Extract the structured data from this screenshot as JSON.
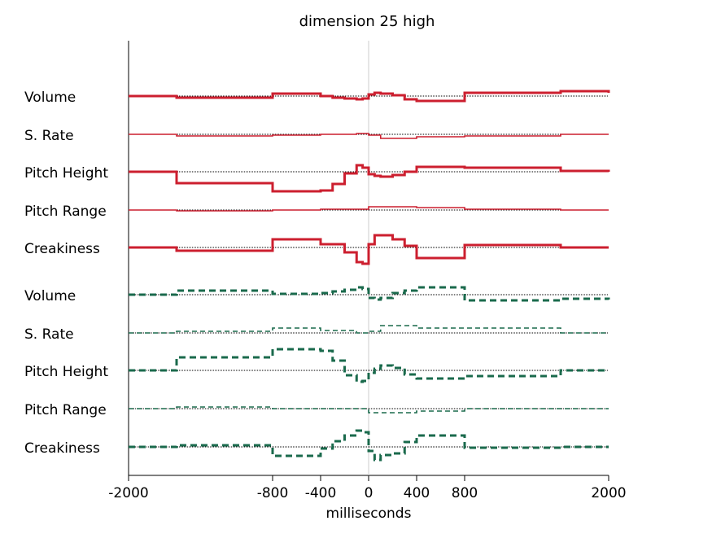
{
  "chart_data": {
    "type": "line",
    "title": "dimension 25 high",
    "xlabel": "milliseconds",
    "ylabel": "",
    "xlim": [
      -2000,
      2000
    ],
    "x_ticks": [
      -2000,
      -800,
      -400,
      0,
      400,
      800,
      2000
    ],
    "x_tick_labels": [
      "-2000",
      "-800",
      "-400",
      "0",
      "400",
      "800",
      "2000"
    ],
    "zero_line": true,
    "grid": false,
    "groups": [
      {
        "style": "solid",
        "color": "#cc1f2f",
        "series": [
          {
            "name": "Volume",
            "weight": "thick",
            "points": [
              [
                -2000,
                0
              ],
              [
                -1600,
                -2
              ],
              [
                -800,
                3
              ],
              [
                -400,
                0
              ],
              [
                -300,
                -2
              ],
              [
                -200,
                -3
              ],
              [
                -100,
                -4
              ],
              [
                -50,
                -3
              ],
              [
                0,
                2
              ],
              [
                50,
                4
              ],
              [
                100,
                3
              ],
              [
                200,
                1
              ],
              [
                300,
                -4
              ],
              [
                400,
                -6
              ],
              [
                800,
                4
              ],
              [
                1600,
                6
              ],
              [
                2000,
                4
              ]
            ]
          },
          {
            "name": "S. Rate",
            "weight": "thin",
            "points": [
              [
                -2000,
                0
              ],
              [
                -1600,
                -2
              ],
              [
                -800,
                -1
              ],
              [
                -400,
                0
              ],
              [
                -100,
                1
              ],
              [
                0,
                -1
              ],
              [
                100,
                -5
              ],
              [
                400,
                -3
              ],
              [
                800,
                -2
              ],
              [
                1600,
                0
              ],
              [
                2000,
                0
              ]
            ]
          },
          {
            "name": "Pitch Height",
            "weight": "thick",
            "points": [
              [
                -2000,
                0
              ],
              [
                -1600,
                -14
              ],
              [
                -800,
                -24
              ],
              [
                -400,
                -23
              ],
              [
                -300,
                -15
              ],
              [
                -200,
                -2
              ],
              [
                -100,
                8
              ],
              [
                -50,
                5
              ],
              [
                0,
                -3
              ],
              [
                50,
                -5
              ],
              [
                100,
                -6
              ],
              [
                200,
                -4
              ],
              [
                300,
                0
              ],
              [
                400,
                6
              ],
              [
                800,
                5
              ],
              [
                1600,
                1
              ],
              [
                2000,
                0
              ]
            ]
          },
          {
            "name": "Pitch Range",
            "weight": "thin",
            "points": [
              [
                -2000,
                0
              ],
              [
                -1600,
                -1
              ],
              [
                -800,
                0
              ],
              [
                -400,
                1
              ],
              [
                0,
                4
              ],
              [
                400,
                3
              ],
              [
                800,
                1
              ],
              [
                1600,
                0
              ],
              [
                2000,
                0
              ]
            ]
          },
          {
            "name": "Creakiness",
            "weight": "thick",
            "points": [
              [
                -2000,
                0
              ],
              [
                -1600,
                -4
              ],
              [
                -800,
                10
              ],
              [
                -400,
                4
              ],
              [
                -200,
                -6
              ],
              [
                -100,
                -18
              ],
              [
                -50,
                -20
              ],
              [
                0,
                4
              ],
              [
                50,
                15
              ],
              [
                200,
                10
              ],
              [
                300,
                2
              ],
              [
                400,
                -13
              ],
              [
                800,
                3
              ],
              [
                1600,
                0
              ],
              [
                2000,
                0
              ]
            ]
          }
        ]
      },
      {
        "style": "dashed",
        "color": "#1a6a4c",
        "series": [
          {
            "name": "Volume",
            "weight": "thick",
            "points": [
              [
                -2000,
                0
              ],
              [
                -1600,
                5
              ],
              [
                -800,
                1
              ],
              [
                -400,
                2
              ],
              [
                -300,
                4
              ],
              [
                -200,
                6
              ],
              [
                -100,
                9
              ],
              [
                -50,
                7
              ],
              [
                0,
                -4
              ],
              [
                50,
                -6
              ],
              [
                100,
                -4
              ],
              [
                200,
                2
              ],
              [
                300,
                5
              ],
              [
                400,
                9
              ],
              [
                800,
                -7
              ],
              [
                1600,
                -5
              ],
              [
                2000,
                -6
              ]
            ]
          },
          {
            "name": "S. Rate",
            "weight": "thin",
            "points": [
              [
                -2000,
                0
              ],
              [
                -1600,
                2
              ],
              [
                -800,
                6
              ],
              [
                -400,
                3
              ],
              [
                -100,
                0
              ],
              [
                0,
                2
              ],
              [
                100,
                9
              ],
              [
                400,
                6
              ],
              [
                800,
                6
              ],
              [
                1600,
                0
              ],
              [
                2000,
                0
              ]
            ]
          },
          {
            "name": "Pitch Height",
            "weight": "thick",
            "points": [
              [
                -2000,
                0
              ],
              [
                -1600,
                16
              ],
              [
                -800,
                26
              ],
              [
                -400,
                24
              ],
              [
                -300,
                12
              ],
              [
                -200,
                -6
              ],
              [
                -100,
                -14
              ],
              [
                -50,
                -13
              ],
              [
                0,
                -3
              ],
              [
                50,
                2
              ],
              [
                100,
                6
              ],
              [
                200,
                3
              ],
              [
                300,
                -5
              ],
              [
                400,
                -10
              ],
              [
                800,
                -7
              ],
              [
                1600,
                0
              ],
              [
                2000,
                0
              ]
            ]
          },
          {
            "name": "Pitch Range",
            "weight": "thin",
            "points": [
              [
                -2000,
                0
              ],
              [
                -1600,
                2
              ],
              [
                -800,
                0
              ],
              [
                -400,
                0
              ],
              [
                0,
                -5
              ],
              [
                400,
                -3
              ],
              [
                800,
                0
              ],
              [
                1600,
                0
              ],
              [
                2000,
                0
              ]
            ]
          },
          {
            "name": "Creakiness",
            "weight": "thick",
            "points": [
              [
                -2000,
                0
              ],
              [
                -1600,
                2
              ],
              [
                -800,
                -11
              ],
              [
                -400,
                -2
              ],
              [
                -300,
                7
              ],
              [
                -200,
                14
              ],
              [
                -100,
                20
              ],
              [
                -50,
                18
              ],
              [
                0,
                -5
              ],
              [
                50,
                -16
              ],
              [
                100,
                -10
              ],
              [
                200,
                -8
              ],
              [
                300,
                6
              ],
              [
                400,
                14
              ],
              [
                800,
                -1
              ],
              [
                1600,
                0
              ],
              [
                2000,
                0
              ]
            ]
          }
        ]
      }
    ]
  }
}
